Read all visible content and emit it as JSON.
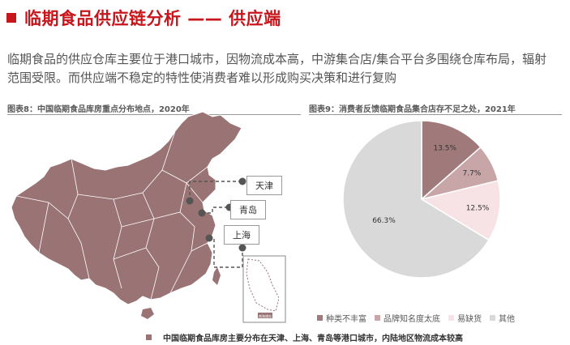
{
  "header": {
    "title": "临期食品供应链分析 —— 供应端"
  },
  "description": "临期食品的供应仓库主要位于港口城市，因物流成本高，中游集合店/集合平台多围绕仓库布局，辐射范围受限。而供应端不稳定的特性使消费者难以形成购买决策和进行复购",
  "figure8": {
    "caption": "图表8：中国临期食品库房重点分布地点，2020年",
    "cities": [
      "天津",
      "青岛",
      "上海"
    ],
    "inset_label": "南海诸岛",
    "note": "中国临期食品库房主要分布在天津、上海、青岛等港口城市，内陆地区物流成本较高"
  },
  "figure9": {
    "caption": "图表9：消费者反馈临期食品集合店存不足之处，2021年"
  },
  "colors": {
    "accent": "#c8161d",
    "map_fill": "#9a7375"
  },
  "chart_data": {
    "type": "pie",
    "title": "图表9：消费者反馈临期食品集合店存不足之处，2021年",
    "categories": [
      "种类不丰富",
      "品牌知名度太底",
      "易缺货",
      "其他"
    ],
    "values": [
      13.5,
      7.7,
      12.5,
      66.3
    ],
    "labels": [
      "13.5%",
      "7.7%",
      "12.5%",
      "66.3%"
    ],
    "colors": [
      "#a07a7b",
      "#c8a6a8",
      "#f7e3e5",
      "#d9d9d9"
    ],
    "legend": "bottom"
  }
}
